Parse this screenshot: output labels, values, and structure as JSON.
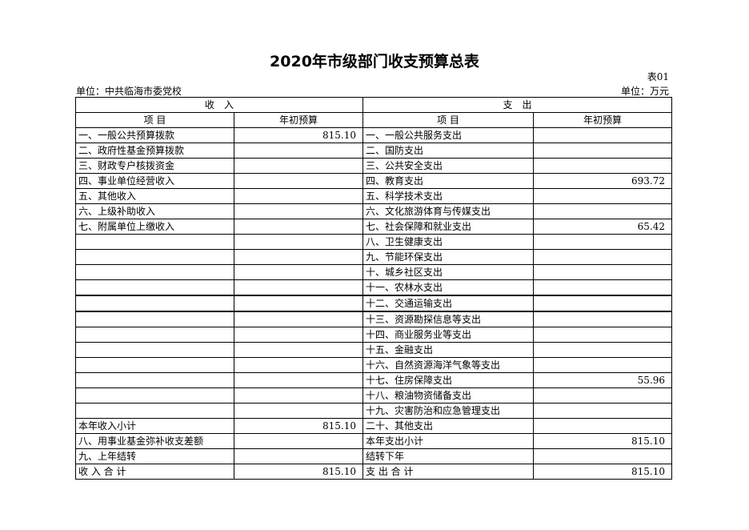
{
  "title": "2020年市级部门收支预算总表",
  "table_no": "表01",
  "unit_left": "单位：中共临海市委党校",
  "unit_right": "单位：万元",
  "headers": {
    "income": "收　入",
    "expense": "支　出",
    "item": "项 目",
    "budget": "年初预算"
  },
  "rows": [
    [
      "一、一般公共预算拨款",
      "815.10",
      "一、一般公共服务支出",
      ""
    ],
    [
      "二、政府性基金预算拨款",
      "",
      "二、国防支出",
      ""
    ],
    [
      "三、财政专户核拨资金",
      "",
      "三、公共安全支出",
      ""
    ],
    [
      "四、事业单位经营收入",
      "",
      "四、教育支出",
      "693.72"
    ],
    [
      "五、其他收入",
      "",
      "五、科学技术支出",
      ""
    ],
    [
      "六、上级补助收入",
      "",
      "六、文化旅游体育与传媒支出",
      ""
    ],
    [
      "七、附属单位上缴收入",
      "",
      "七、社会保障和就业支出",
      "65.42"
    ],
    [
      "",
      "",
      "八、卫生健康支出",
      ""
    ],
    [
      "",
      "",
      "九、节能环保支出",
      ""
    ],
    [
      "",
      "",
      "十、城乡社区支出",
      ""
    ],
    [
      "",
      "",
      "十一、农林水支出",
      ""
    ],
    [
      "",
      "",
      "十二、交通运输支出",
      ""
    ],
    [
      "",
      "",
      "十三、资源勘探信息等支出",
      ""
    ],
    [
      "",
      "",
      "十四、商业服务业等支出",
      ""
    ],
    [
      "",
      "",
      "十五、金融支出",
      ""
    ],
    [
      "",
      "",
      "十六、自然资源海洋气象等支出",
      ""
    ],
    [
      "",
      "",
      "十七、住房保障支出",
      "55.96"
    ],
    [
      "",
      "",
      "十八、粮油物资储备支出",
      ""
    ],
    [
      "",
      "",
      "十九、灾害防治和应急管理支出",
      ""
    ],
    [
      "本年收入小计",
      "815.10",
      "二十、其他支出",
      ""
    ],
    [
      "八、用事业基金弥补收支差额",
      "",
      "本年支出小计",
      "815.10"
    ],
    [
      "九、上年结转",
      "",
      "结转下年",
      ""
    ],
    [
      "收 入 合 计",
      "815.10",
      "支 出 合 计",
      "815.10"
    ]
  ]
}
